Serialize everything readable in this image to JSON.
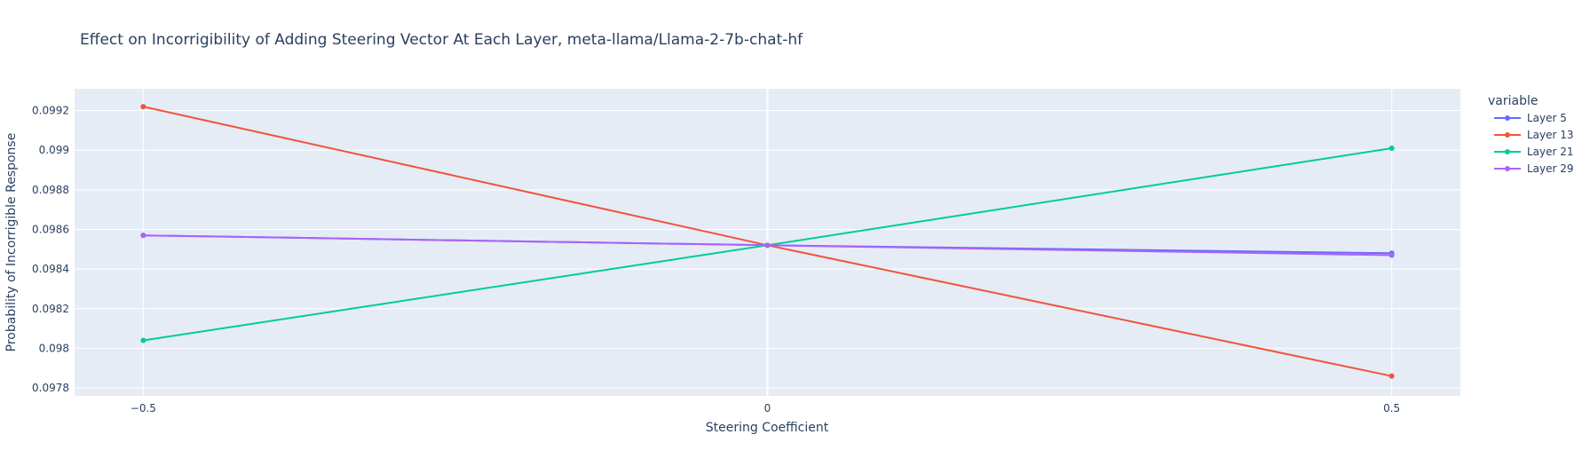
{
  "chart_data": {
    "type": "line",
    "title": "Effect on Incorrigibility of Adding Steering Vector At Each Layer, meta-llama/Llama-2-7b-chat-hf",
    "xlabel": "Steering Coefficient",
    "ylabel": "Probability of Incorrigible Response",
    "x": [
      -0.5,
      0,
      0.5
    ],
    "x_tick_labels": [
      "−0.5",
      "0",
      "0.5"
    ],
    "xlim": [
      -0.555,
      0.555
    ],
    "ylim": [
      0.09776,
      0.09931
    ],
    "y_ticks": [
      0.0978,
      0.098,
      0.0982,
      0.0984,
      0.0986,
      0.0988,
      0.099,
      0.0992
    ],
    "y_tick_labels": [
      "0.0978",
      "0.098",
      "0.0982",
      "0.0984",
      "0.0986",
      "0.0988",
      "0.099",
      "0.0992"
    ],
    "grid": true,
    "legend_position": "right",
    "legend_title": "variable",
    "series": [
      {
        "name": "Layer 5",
        "color": "#636efa",
        "values": [
          0.09857,
          0.09852,
          0.09848
        ]
      },
      {
        "name": "Layer 13",
        "color": "#ef553b",
        "values": [
          0.09922,
          0.09852,
          0.09786
        ]
      },
      {
        "name": "Layer 21",
        "color": "#00cc96",
        "values": [
          0.09804,
          0.09852,
          0.09901
        ]
      },
      {
        "name": "Layer 29",
        "color": "#ab63fa",
        "values": [
          0.09857,
          0.09852,
          0.09847
        ]
      }
    ]
  }
}
